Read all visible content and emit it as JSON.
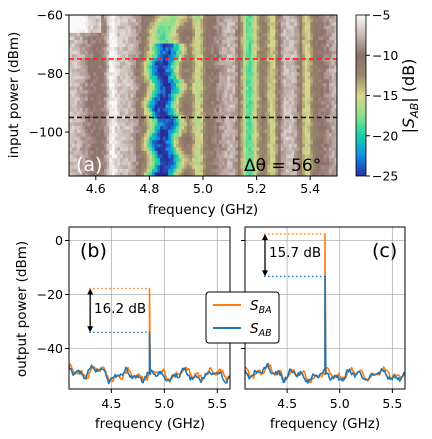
{
  "chart_data": [
    {
      "id": "a",
      "type": "heatmap",
      "panel_label": "(a)",
      "annotation": "Δθ = 56°",
      "xlabel": "frequency (GHz)",
      "ylabel": "input power (dBm)",
      "xlim": [
        4.5,
        5.5
      ],
      "ylim": [
        -115,
        -60
      ],
      "xticks": [
        4.6,
        4.8,
        5.0,
        5.2,
        5.4
      ],
      "xtick_labels": [
        "4.6",
        "4.8",
        "5.0",
        "5.2",
        "5.4"
      ],
      "yticks": [
        -60,
        -80,
        -100
      ],
      "ytick_labels": [
        "−60",
        "−80",
        "−100"
      ],
      "colorbar": {
        "label": "|S_AB| (dB)",
        "range": [
          -25,
          -5
        ],
        "ticks": [
          -5,
          -10,
          -15,
          -20,
          -25
        ],
        "tick_labels": [
          "−5",
          "−10",
          "−15",
          "−20",
          "−25"
        ],
        "colormap": "terrain",
        "colors": [
          "#2b2c9a",
          "#0f8fe6",
          "#19cfa7",
          "#8de08a",
          "#dbd58e",
          "#998a6b",
          "#8c7169",
          "#c9b9b3",
          "#fbfafa"
        ]
      },
      "horizontal_lines": [
        {
          "y": -75,
          "color": "#ff2020",
          "style": "dashed"
        },
        {
          "y": -95,
          "color": "#202020",
          "style": "dashed"
        }
      ],
      "bands": [
        {
          "center": 4.86,
          "width": 0.095,
          "depth": 14
        },
        {
          "center": 4.98,
          "width": 0.035,
          "depth": 6
        },
        {
          "center": 5.17,
          "width": 0.05,
          "depth": 10
        },
        {
          "center": 5.26,
          "width": 0.035,
          "depth": 6
        },
        {
          "center": 5.385,
          "width": 0.035,
          "depth": 6
        }
      ]
    },
    {
      "id": "b",
      "type": "line",
      "panel_label": "(b)",
      "xlabel": "frequency (GHz)",
      "ylabel": "output power (dBm)",
      "xlim": [
        4.1,
        5.62
      ],
      "ylim": [
        -55,
        5
      ],
      "xticks": [
        4.5,
        5.0,
        5.5
      ],
      "xtick_labels": [
        "4.5",
        "5.0",
        "5.5"
      ],
      "yticks": [
        0,
        -20,
        -40
      ],
      "ytick_labels": [
        "0",
        "−20",
        "−40"
      ],
      "grid": true,
      "peak_frequency": 4.86,
      "noise_floor": -50,
      "series": [
        {
          "name": "S_BA",
          "color": "#ff7f0e",
          "peak": -17.8
        },
        {
          "name": "S_AB",
          "color": "#1f77b4",
          "peak": -34.0
        }
      ],
      "annotation": "16.2 dB"
    },
    {
      "id": "c",
      "type": "line",
      "panel_label": "(c)",
      "xlabel": "frequency (GHz)",
      "xlim": [
        4.1,
        5.62
      ],
      "ylim": [
        -55,
        5
      ],
      "xticks": [
        4.5,
        5.0,
        5.5
      ],
      "xtick_labels": [
        "4.5",
        "5.0",
        "5.5"
      ],
      "yticks": [
        0,
        -20,
        -40
      ],
      "grid": true,
      "peak_frequency": 4.86,
      "noise_floor": -50,
      "series": [
        {
          "name": "S_BA",
          "color": "#ff7f0e",
          "peak": 2.4
        },
        {
          "name": "S_AB",
          "color": "#1f77b4",
          "peak": -13.3
        }
      ],
      "annotation": "15.7 dB"
    }
  ],
  "legend": {
    "placement": "between panels (b) and (c)",
    "entries": [
      {
        "name": "S_BA",
        "color": "#ff7f0e"
      },
      {
        "name": "S_AB",
        "color": "#1f77b4"
      }
    ]
  }
}
